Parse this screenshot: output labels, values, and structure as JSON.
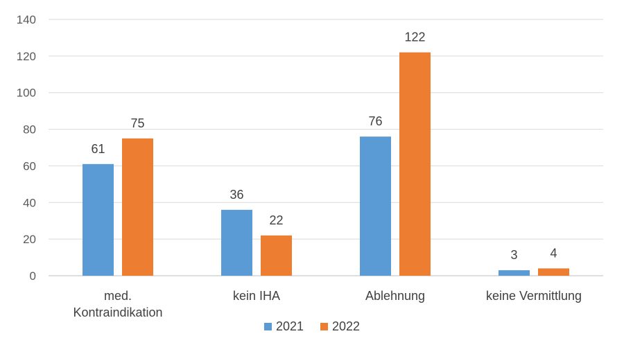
{
  "chart_data": {
    "type": "bar",
    "categories": [
      [
        "med.",
        "Kontraindikation"
      ],
      [
        "kein IHA"
      ],
      [
        "Ablehnung"
      ],
      [
        "keine Vermittlung"
      ]
    ],
    "series": [
      {
        "name": "2021",
        "color": "#5b9bd5",
        "values": [
          61,
          36,
          76,
          3
        ]
      },
      {
        "name": "2022",
        "color": "#ed7d31",
        "values": [
          75,
          22,
          122,
          4
        ]
      }
    ],
    "ylim": [
      0,
      140
    ],
    "yticks": [
      0,
      20,
      40,
      60,
      80,
      100,
      120,
      140
    ],
    "grid": true,
    "data_labels": true,
    "legend_position": "bottom"
  }
}
